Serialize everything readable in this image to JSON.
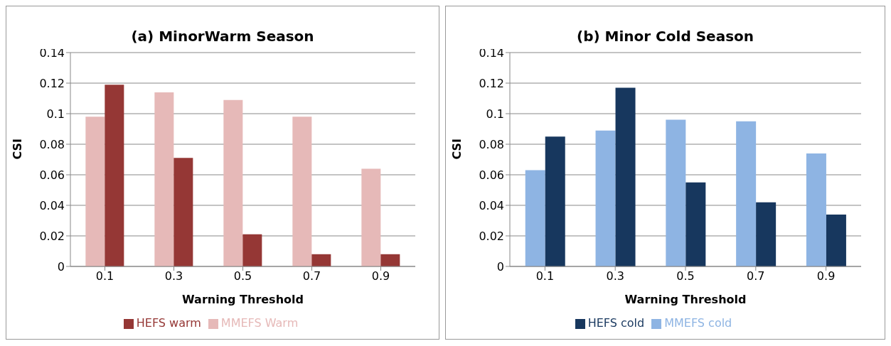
{
  "chart_data": [
    {
      "type": "bar",
      "title": "(a) MinorWarm Season",
      "xlabel": "Warning Threshold",
      "ylabel": "CSI",
      "categories": [
        "0.1",
        "0.3",
        "0.5",
        "0.7",
        "0.9"
      ],
      "series": [
        {
          "name": "MMEFS Warm",
          "color": "#e6b9b8",
          "values": [
            0.098,
            0.114,
            0.109,
            0.098,
            0.064
          ]
        },
        {
          "name": "HEFS warm",
          "color": "#953735",
          "values": [
            0.119,
            0.071,
            0.021,
            0.008,
            0.008
          ]
        }
      ],
      "ylim": [
        0,
        0.14
      ],
      "yticks": [
        0,
        0.02,
        0.04,
        0.06,
        0.08,
        0.1,
        0.12,
        0.14
      ],
      "grid": "y",
      "legend": "bottom"
    },
    {
      "type": "bar",
      "title": "(b) Minor Cold Season",
      "xlabel": "Warning Threshold",
      "ylabel": "CSI",
      "categories": [
        "0.1",
        "0.3",
        "0.5",
        "0.7",
        "0.9"
      ],
      "series": [
        {
          "name": "MMEFS cold",
          "color": "#8eb4e3",
          "values": [
            0.063,
            0.089,
            0.096,
            0.095,
            0.074
          ]
        },
        {
          "name": "HEFS cold",
          "color": "#17375e",
          "values": [
            0.085,
            0.117,
            0.055,
            0.042,
            0.034
          ]
        }
      ],
      "ylim": [
        0,
        0.14
      ],
      "yticks": [
        0,
        0.02,
        0.04,
        0.06,
        0.08,
        0.1,
        0.12,
        0.14
      ],
      "grid": "y",
      "legend": "bottom"
    }
  ]
}
